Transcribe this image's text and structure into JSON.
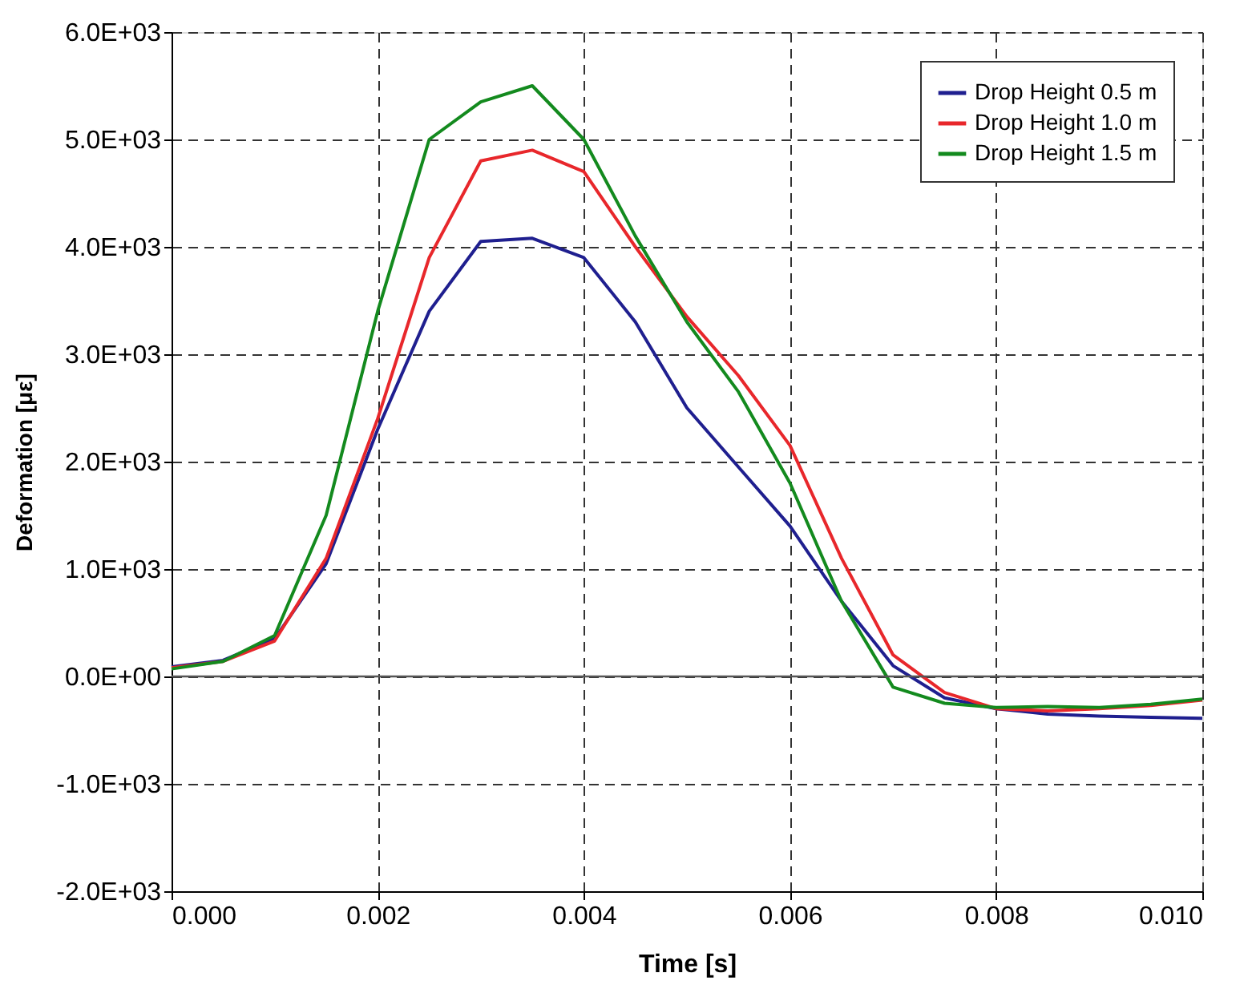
{
  "chart_data": {
    "type": "line",
    "xlabel": "Time [s]",
    "ylabel": "Deformation [με]",
    "x": [
      0,
      0.0005,
      0.001,
      0.0015,
      0.002,
      0.0025,
      0.003,
      0.0035,
      0.004,
      0.0045,
      0.005,
      0.0055,
      0.006,
      0.0065,
      0.007,
      0.0075,
      0.008,
      0.0085,
      0.009,
      0.0095,
      0.01
    ],
    "series": [
      {
        "name": "Drop Height 0.5 m",
        "color": "#1f1f8f",
        "values": [
          90,
          150,
          350,
          1050,
          2300,
          3400,
          4050,
          4080,
          3900,
          3300,
          2500,
          1950,
          1400,
          700,
          100,
          -200,
          -300,
          -350,
          -370,
          -380,
          -390
        ]
      },
      {
        "name": "Drop Height 1.0 m",
        "color": "#e8272b",
        "values": [
          80,
          140,
          330,
          1100,
          2400,
          3900,
          4800,
          4900,
          4700,
          4000,
          3350,
          2800,
          2150,
          1100,
          200,
          -150,
          -300,
          -320,
          -300,
          -270,
          -220
        ]
      },
      {
        "name": "Drop Height 1.5 m",
        "color": "#138a1e",
        "values": [
          70,
          140,
          380,
          1500,
          3400,
          5000,
          5350,
          5500,
          5000,
          4100,
          3300,
          2650,
          1800,
          700,
          -100,
          -250,
          -290,
          -280,
          -290,
          -260,
          -210
        ]
      }
    ],
    "xlim": [
      0,
      0.01
    ],
    "xticks": [
      {
        "value": 0,
        "label": "0.000"
      },
      {
        "value": 0.002,
        "label": "0.002"
      },
      {
        "value": 0.004,
        "label": "0.004"
      },
      {
        "value": 0.006,
        "label": "0.006"
      },
      {
        "value": 0.008,
        "label": "0.008"
      },
      {
        "value": 0.01,
        "label": "0.010"
      }
    ],
    "ylim": [
      -2000,
      6000
    ],
    "yticks": [
      {
        "value": -2000,
        "label": "-2.0E+03"
      },
      {
        "value": -1000,
        "label": "-1.0E+03"
      },
      {
        "value": 0,
        "label": "0.0E+00"
      },
      {
        "value": 1000,
        "label": "1.0E+03"
      },
      {
        "value": 2000,
        "label": "2.0E+03"
      },
      {
        "value": 3000,
        "label": "3.0E+03"
      },
      {
        "value": 4000,
        "label": "4.0E+03"
      },
      {
        "value": 5000,
        "label": "5.0E+03"
      },
      {
        "value": 6000,
        "label": "6.0E+03"
      }
    ],
    "ref_lines": [
      {
        "axis": "y",
        "value": 0,
        "color": "#555555",
        "line_style": "solid"
      }
    ],
    "grid": true,
    "legend": "top right",
    "marker": "none",
    "line_style": "solid"
  }
}
